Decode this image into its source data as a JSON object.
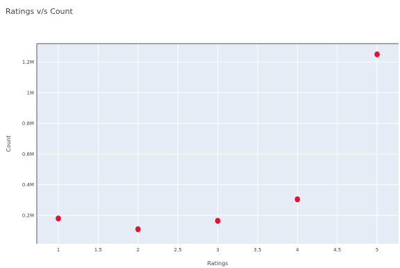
{
  "chart_data": {
    "type": "scatter",
    "title": "Ratings v/s Count",
    "xlabel": "Ratings",
    "ylabel": "Count",
    "x": [
      1,
      2,
      3,
      4,
      5
    ],
    "y": [
      180000,
      110000,
      165000,
      305000,
      1250000
    ],
    "xlim": [
      0.73,
      5.27
    ],
    "ylim": [
      15000,
      1320000
    ],
    "xticks": [
      1,
      1.5,
      2,
      2.5,
      3,
      3.5,
      4,
      4.5,
      5
    ],
    "xtick_labels": [
      "1",
      "1.5",
      "2",
      "2.5",
      "3",
      "3.5",
      "4",
      "4.5",
      "5"
    ],
    "yticks": [
      200000,
      400000,
      600000,
      800000,
      1000000,
      1200000
    ],
    "ytick_labels": [
      "0.2M",
      "0.4M",
      "0.6M",
      "0.8M",
      "1M",
      "1.2M"
    ],
    "grid": true,
    "colors": {
      "marker": "#e8102e",
      "plot_background": "#e5ecf6",
      "gridline": "#ffffff",
      "text": "#444444"
    }
  }
}
